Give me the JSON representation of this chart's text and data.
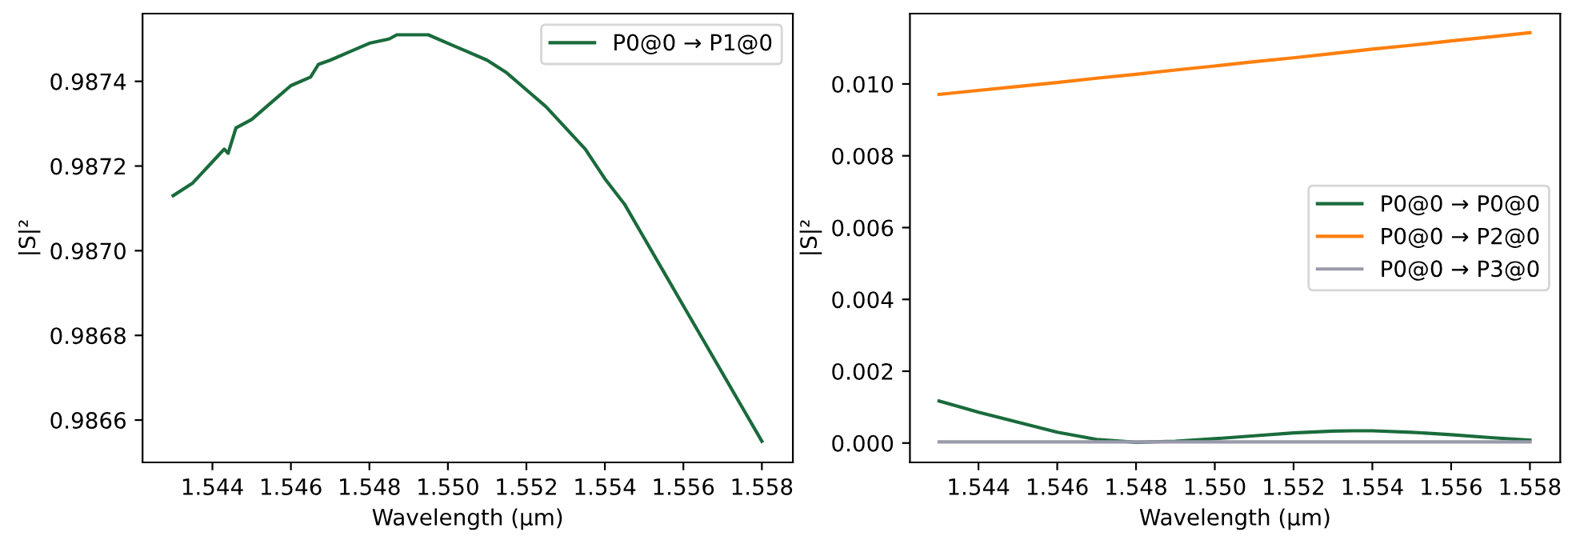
{
  "chart_data": [
    {
      "type": "line",
      "xlabel": "Wavelength (µm)",
      "ylabel": "|S|²",
      "xlim": [
        1.54222,
        1.55879
      ],
      "ylim": [
        0.9865,
        0.98756
      ],
      "xticks": [
        {
          "value": 1.544,
          "label": "1.544"
        },
        {
          "value": 1.546,
          "label": "1.546"
        },
        {
          "value": 1.548,
          "label": "1.548"
        },
        {
          "value": 1.55,
          "label": "1.550"
        },
        {
          "value": 1.552,
          "label": "1.552"
        },
        {
          "value": 1.554,
          "label": "1.554"
        },
        {
          "value": 1.556,
          "label": "1.556"
        },
        {
          "value": 1.558,
          "label": "1.558"
        }
      ],
      "yticks": [
        0.9866,
        0.9868,
        {
          "value": 0.987,
          "label": "0.9870"
        },
        0.9872,
        0.9874
      ],
      "legend": "top right",
      "grid": false,
      "x": [
        1.543,
        1.5435,
        1.544,
        1.5443,
        1.5444,
        1.5446,
        1.545,
        1.5455,
        1.546,
        1.5465,
        1.5467,
        1.547,
        1.5475,
        1.548,
        1.5485,
        1.5487,
        1.549,
        1.5495,
        1.55,
        1.5505,
        1.551,
        1.5515,
        1.552,
        1.5525,
        1.553,
        1.5535,
        1.554,
        1.5545,
        1.555,
        1.5555,
        1.556,
        1.5565,
        1.557,
        1.5575,
        1.558
      ],
      "series": [
        {
          "name": "P0@0 → P1@0",
          "color": "#1a6b3c",
          "values": [
            0.98713,
            0.98716,
            0.98721,
            0.98724,
            0.98723,
            0.98729,
            0.98731,
            0.98735,
            0.98739,
            0.98741,
            0.98744,
            0.98745,
            0.98747,
            0.98749,
            0.9875,
            0.98751,
            0.98751,
            0.98751,
            0.98749,
            0.98747,
            0.98745,
            0.98742,
            0.98738,
            0.98734,
            0.98729,
            0.98724,
            0.98717,
            0.98711,
            0.98703,
            0.98695,
            0.98687,
            0.98679,
            0.98671,
            0.98663,
            0.98655
          ]
        }
      ]
    },
    {
      "type": "line",
      "xlabel": "Wavelength (µm)",
      "ylabel": "|S|²",
      "xlim": [
        1.54226,
        1.55877
      ],
      "ylim": [
        -0.00054,
        0.01196
      ],
      "xticks": [
        {
          "value": 1.544,
          "label": "1.544"
        },
        {
          "value": 1.546,
          "label": "1.546"
        },
        {
          "value": 1.548,
          "label": "1.548"
        },
        {
          "value": 1.55,
          "label": "1.550"
        },
        {
          "value": 1.552,
          "label": "1.552"
        },
        {
          "value": 1.554,
          "label": "1.554"
        },
        {
          "value": 1.556,
          "label": "1.556"
        },
        {
          "value": 1.558,
          "label": "1.558"
        }
      ],
      "yticks": [
        {
          "value": 0,
          "label": "0.000"
        },
        {
          "value": 0.002,
          "label": "0.002"
        },
        {
          "value": 0.004,
          "label": "0.004"
        },
        {
          "value": 0.006,
          "label": "0.006"
        },
        {
          "value": 0.008,
          "label": "0.008"
        },
        {
          "value": 0.01,
          "label": "0.010"
        }
      ],
      "legend": "center right",
      "grid": false,
      "x": [
        1.543,
        1.544,
        1.545,
        1.546,
        1.547,
        1.548,
        1.549,
        1.55,
        1.551,
        1.552,
        1.553,
        1.5535,
        1.554,
        1.555,
        1.556,
        1.557,
        1.558
      ],
      "series": [
        {
          "name": "P0@0 → P0@0",
          "color": "#1a6b3c",
          "values": [
            0.00117,
            0.00086,
            0.00058,
            0.0003,
            0.0001,
            2e-05,
            5e-05,
            0.00012,
            0.0002,
            0.00028,
            0.00033,
            0.00034,
            0.00034,
            0.0003,
            0.00023,
            0.00015,
            8e-05
          ]
        },
        {
          "name": "P0@0 → P2@0",
          "color": "#ff7f0e",
          "values": [
            0.00971,
            0.00982,
            0.00993,
            0.01004,
            0.01016,
            0.01027,
            0.01039,
            0.0105,
            0.01062,
            0.01073,
            0.01085,
            0.01091,
            0.01097,
            0.01108,
            0.0112,
            0.01131,
            0.01143
          ]
        },
        {
          "name": "P0@0 → P3@0",
          "color": "#9a9aaa",
          "values": [
            3e-05,
            3e-05,
            3e-05,
            3e-05,
            3e-05,
            3e-05,
            3e-05,
            3e-05,
            3e-05,
            3e-05,
            3e-05,
            3e-05,
            3e-05,
            3e-05,
            3e-05,
            3e-05,
            3e-05
          ]
        }
      ]
    }
  ]
}
